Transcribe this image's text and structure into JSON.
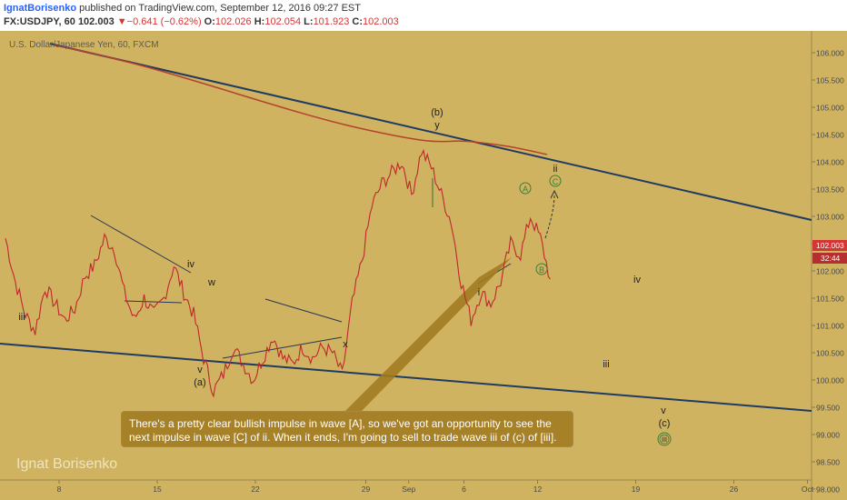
{
  "header": {
    "author": "IgnatBorisenko",
    "published": " published on TradingView.com, September 12, 2016 09:27 EST",
    "symbol": "FX:USDJPY, 60",
    "last": "102.003",
    "change_arrow": "▼",
    "change": "−0.641 (−0.62%)",
    "o_label": "O:",
    "o": "102.026",
    "h_label": "H:",
    "h": "102.054",
    "l_label": "L:",
    "l": "101.923",
    "c_label": "C:",
    "c": "102.003"
  },
  "symbol_title": "U.S. Dollar/Japanese Yen, 60, FXCM",
  "watermark": "Ignat Borisenko",
  "callout": "There's a pretty clear bullish impulse in wave [A], so we've got an opportunity to see the next impulse in wave [C] of ii. When it ends, I'm going to sell to trade wave iii of (c) of [iii].",
  "chart_data": {
    "type": "line",
    "title": "U.S. Dollar/Japanese Yen, 60, FXCM",
    "x_ticks": [
      "8",
      "15",
      "22",
      "29",
      "Sep",
      "6",
      "12",
      "19",
      "26",
      "Oct"
    ],
    "y_ticks": [
      "106.000",
      "105.500",
      "105.000",
      "104.500",
      "104.000",
      "103.500",
      "103.000",
      "102.500",
      "102.000",
      "101.500",
      "101.000",
      "100.500",
      "100.000",
      "99.500",
      "99.000",
      "98.500",
      "98.000",
      "97.500"
    ],
    "ylim": [
      97.3,
      106.2
    ],
    "last_price_label": "102.003",
    "countdown_label": "32:44",
    "colors": {
      "price": "#c0272d",
      "trendline": "#1f3b63",
      "ma": "#b5432c",
      "background": "#cfb361",
      "green": "#3e7d34"
    },
    "series": [
      {
        "values": [
          102.6,
          101.8,
          101.2,
          100.9,
          101.7,
          101.4,
          101.1,
          101.3,
          101.9,
          102.1,
          102.6,
          102.4,
          101.6,
          101.1,
          101.5,
          101.2,
          101.5,
          102.1,
          101.6,
          101.2,
          100.4,
          99.8,
          100.1,
          100.6,
          100.3,
          100.0,
          100.4,
          100.8,
          100.4,
          100.3,
          100.6,
          100.4,
          100.6,
          100.5,
          100.1,
          101.4,
          102.2,
          103.2,
          103.6,
          103.8,
          104.0,
          103.4,
          104.2,
          103.9,
          103.4,
          102.9,
          101.8,
          101.1,
          101.6,
          101.4,
          101.8,
          102.5,
          102.3,
          103.0,
          102.6,
          101.85
        ]
      }
    ],
    "wave_labels": [
      {
        "text": "iii",
        "x": "day 3",
        "y": 100.6
      },
      {
        "text": "iv",
        "x": "day 17",
        "y": 101.65
      },
      {
        "text": "w",
        "x": "day 18",
        "y": 101.2
      },
      {
        "text": "v",
        "x": "day 17",
        "y": 99.5
      },
      {
        "text": "(a)",
        "x": "day 17",
        "y": 99.25
      },
      {
        "text": "x",
        "x": "day 28",
        "y": 99.95
      },
      {
        "text": "(b)",
        "x": "day 33",
        "y": 104.85
      },
      {
        "text": "y",
        "x": "day 33",
        "y": 104.55
      },
      {
        "text": "i",
        "x": "day 37",
        "y": 101.05
      },
      {
        "text": "A",
        "x": "day 41",
        "y": 103.1
      },
      {
        "text": "B",
        "x": "day 42",
        "y": 101.55
      },
      {
        "text": "ii",
        "x": "day 43",
        "y": 103.65
      },
      {
        "text": "C",
        "x": "day 43",
        "y": 103.3
      },
      {
        "text": "iv",
        "x": "day 50",
        "y": 101.35
      },
      {
        "text": "iii",
        "x": "day 48",
        "y": 99.6
      },
      {
        "text": "v",
        "x": "day 53",
        "y": 98.75
      },
      {
        "text": "(c)",
        "x": "day 53",
        "y": 98.4
      },
      {
        "text": "iii",
        "x": "day 53",
        "y": 98.05
      }
    ]
  }
}
